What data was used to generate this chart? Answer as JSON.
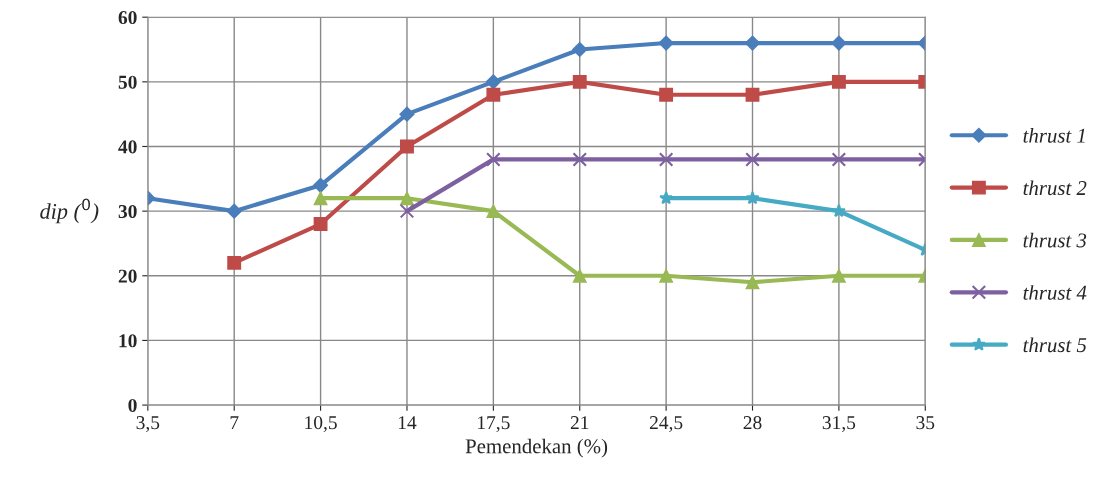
{
  "chart_data": {
    "type": "line",
    "xlabel": "Pemendekan (%)",
    "ylabel": "dip ($^{0}$)",
    "categories": [
      "3,5",
      "7",
      "10,5",
      "14",
      "17,5",
      "21",
      "24,5",
      "28",
      "31,5",
      "35"
    ],
    "series": [
      {
        "name": "thrust 1",
        "color": "#4a7ebb",
        "marker": "diamond",
        "values": [
          32,
          30,
          34,
          45,
          50,
          55,
          56,
          56,
          56,
          56
        ]
      },
      {
        "name": "thrust 2",
        "color": "#be4b48",
        "marker": "square",
        "values": [
          null,
          22,
          28,
          40,
          48,
          50,
          48,
          48,
          50,
          50
        ]
      },
      {
        "name": "thrust 3",
        "color": "#98b954",
        "marker": "triangle",
        "values": [
          null,
          null,
          32,
          32,
          30,
          20,
          20,
          19,
          20,
          20
        ]
      },
      {
        "name": "thrust 4",
        "color": "#7d60a0",
        "marker": "cross",
        "values": [
          null,
          null,
          null,
          30,
          38,
          38,
          38,
          38,
          38,
          38
        ]
      },
      {
        "name": "thrust 5",
        "color": "#46aac5",
        "marker": "star",
        "values": [
          null,
          null,
          null,
          null,
          null,
          null,
          32,
          32,
          30,
          24
        ]
      }
    ],
    "ylim": [
      0,
      60
    ],
    "yticks": [
      0,
      10,
      20,
      30,
      40,
      50,
      60
    ],
    "grid": true,
    "legend": "right",
    "line_style": "solid"
  }
}
